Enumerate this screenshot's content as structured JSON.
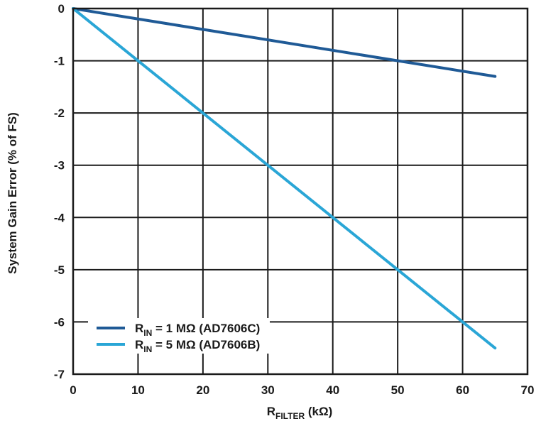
{
  "chart_data": {
    "type": "line",
    "xlabel": {
      "main": "R",
      "sub": "FILTER",
      "unit": " (kΩ)"
    },
    "ylabel": "System Gain Error (% of FS)",
    "xlim": [
      0,
      70
    ],
    "ylim": [
      -7,
      0
    ],
    "xticks": [
      0,
      10,
      20,
      30,
      40,
      50,
      60,
      70
    ],
    "yticks": [
      0,
      -1,
      -2,
      -3,
      -4,
      -5,
      -6,
      -7
    ],
    "xtick_labels": [
      "0",
      "10",
      "20",
      "30",
      "40",
      "50",
      "60",
      "70"
    ],
    "ytick_labels": [
      "0",
      "-1",
      "-2",
      "-3",
      "-4",
      "-5",
      "-6",
      "-7"
    ],
    "grid": true,
    "legend_position": "bottom-left",
    "series": [
      {
        "name": "R_IN = 1 MΩ (AD7606C)",
        "label_main": "R",
        "label_sub": "IN",
        "label_rest": " = 1 MΩ (AD7606C)",
        "color": "#1f5a96",
        "x": [
          0,
          65
        ],
        "y": [
          0,
          -1.3
        ]
      },
      {
        "name": "R_IN = 5 MΩ (AD7606B)",
        "label_main": "R",
        "label_sub": "IN",
        "label_rest": " = 5 MΩ (AD7606B)",
        "color": "#2aa6d6",
        "x": [
          0,
          65
        ],
        "y": [
          0,
          -6.5
        ]
      }
    ]
  }
}
